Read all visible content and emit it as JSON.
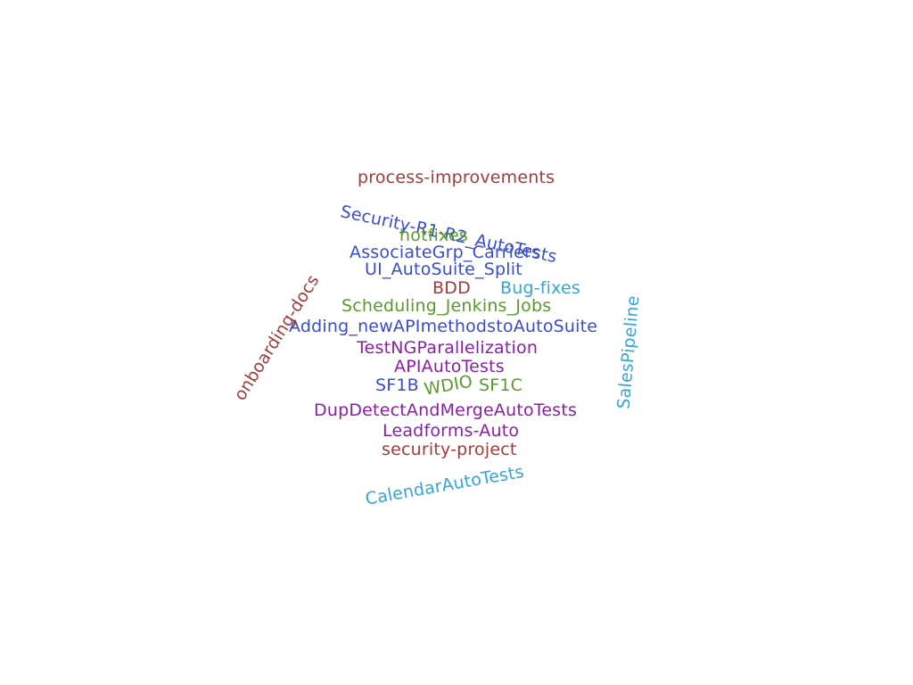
{
  "colors": {
    "red": "#a23b3b",
    "blue": "#3a4ccf",
    "green": "#5a9a2a",
    "cyan": "#35a6d6",
    "purple": "#8a1fa6"
  },
  "words": [
    {
      "name": "word-process-improvements",
      "text": "process-improvements"
    },
    {
      "name": "word-security-r1-r2-autotests",
      "text": "Security-R1-R2_AutoTests"
    },
    {
      "name": "word-hotfixes",
      "text": "hotfixes"
    },
    {
      "name": "word-associategrp-carriers",
      "text": "AssociateGrp_Carriers"
    },
    {
      "name": "word-ui-autosuite-split",
      "text": "UI_AutoSuite_Split"
    },
    {
      "name": "word-bdd",
      "text": "BDD"
    },
    {
      "name": "word-bug-fixes",
      "text": "Bug-fixes"
    },
    {
      "name": "word-scheduling-jenkins-jobs",
      "text": "Scheduling_Jenkins_Jobs"
    },
    {
      "name": "word-adding-newapimethodstoautosuite",
      "text": "Adding_newAPImethodstoAutoSuite"
    },
    {
      "name": "word-testngparallelization",
      "text": "TestNGParallelization"
    },
    {
      "name": "word-apiautotests",
      "text": "APIAutoTests"
    },
    {
      "name": "word-sf1b",
      "text": "SF1B"
    },
    {
      "name": "word-wdio",
      "text": "WDIO"
    },
    {
      "name": "word-sf1c",
      "text": "SF1C"
    },
    {
      "name": "word-dupdetectandmergeautotests",
      "text": "DupDetectAndMergeAutoTests"
    },
    {
      "name": "word-leadforms-auto",
      "text": "Leadforms-Auto"
    },
    {
      "name": "word-security-project",
      "text": "security-project"
    },
    {
      "name": "word-calendarautotests",
      "text": "CalendarAutoTests"
    },
    {
      "name": "word-onboarding-docs",
      "text": "onboarding-docs"
    },
    {
      "name": "word-salespipeline",
      "text": "SalesPipeline"
    }
  ]
}
